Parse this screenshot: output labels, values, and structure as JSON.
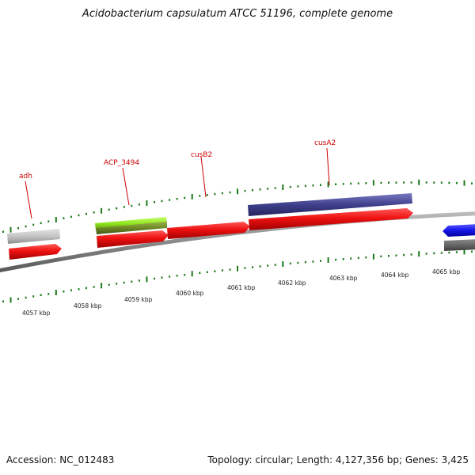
{
  "title": "Acidobacterium capsulatum ATCC 51196, complete genome",
  "footer": {
    "accession": "Accession: NC_012483",
    "summary": "Topology: circular; Length: 4,127,356 bp; Genes: 3,425"
  },
  "colors": {
    "forward_cds": "#ee1111",
    "reverse_cds": "#1a1aee",
    "gray_feature": "#c4c4c4",
    "dark_gray_feature": "#666666",
    "green_feature": "#8ee41c",
    "olive_feature": "#6e8a24",
    "purple_feature": "#3f3f8c",
    "backbone": "#888888",
    "ticks": "#1a7a1a",
    "label_red": "#cc0000"
  },
  "gene_labels": [
    {
      "text": "adh"
    },
    {
      "text": "ACP_3494"
    },
    {
      "text": "cusB2"
    },
    {
      "text": "cusA2"
    }
  ],
  "kbp_labels": [
    {
      "text": "4057 kbp"
    },
    {
      "text": "4058 kbp"
    },
    {
      "text": "4059 kbp"
    },
    {
      "text": "4060 kbp"
    },
    {
      "text": "4061 kbp"
    },
    {
      "text": "4062 kbp"
    },
    {
      "text": "4063 kbp"
    },
    {
      "text": "4064 kbp"
    },
    {
      "text": "4065 kbp"
    }
  ]
}
